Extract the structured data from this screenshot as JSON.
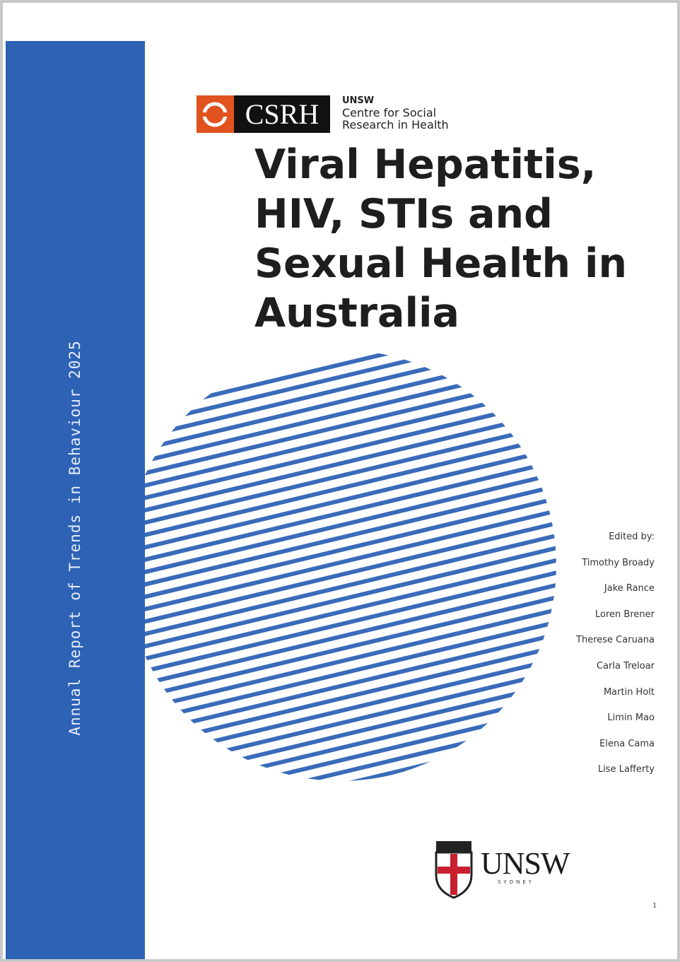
{
  "logo": {
    "mark": "CSRH",
    "org": "UNSW",
    "name_lines": [
      "Centre for Social",
      "Research in Health"
    ]
  },
  "title_lines": [
    "Viral Hepatitis,",
    "HIV, STIs and",
    "Sexual Health in",
    "Australia"
  ],
  "side_text": "Annual Report of Trends in Behaviour 2025",
  "editors": {
    "heading": "Edited by:",
    "names": [
      "Timothy Broady",
      "Jake Rance",
      "Loren Brener",
      "Therese Caruana",
      "Carla Treloar",
      "Martin Holt",
      "Limin Mao",
      "Elena Cama",
      "Lise Lafferty"
    ]
  },
  "university": {
    "name": "UNSW",
    "city": "SYDNEY"
  },
  "page_number": "1"
}
